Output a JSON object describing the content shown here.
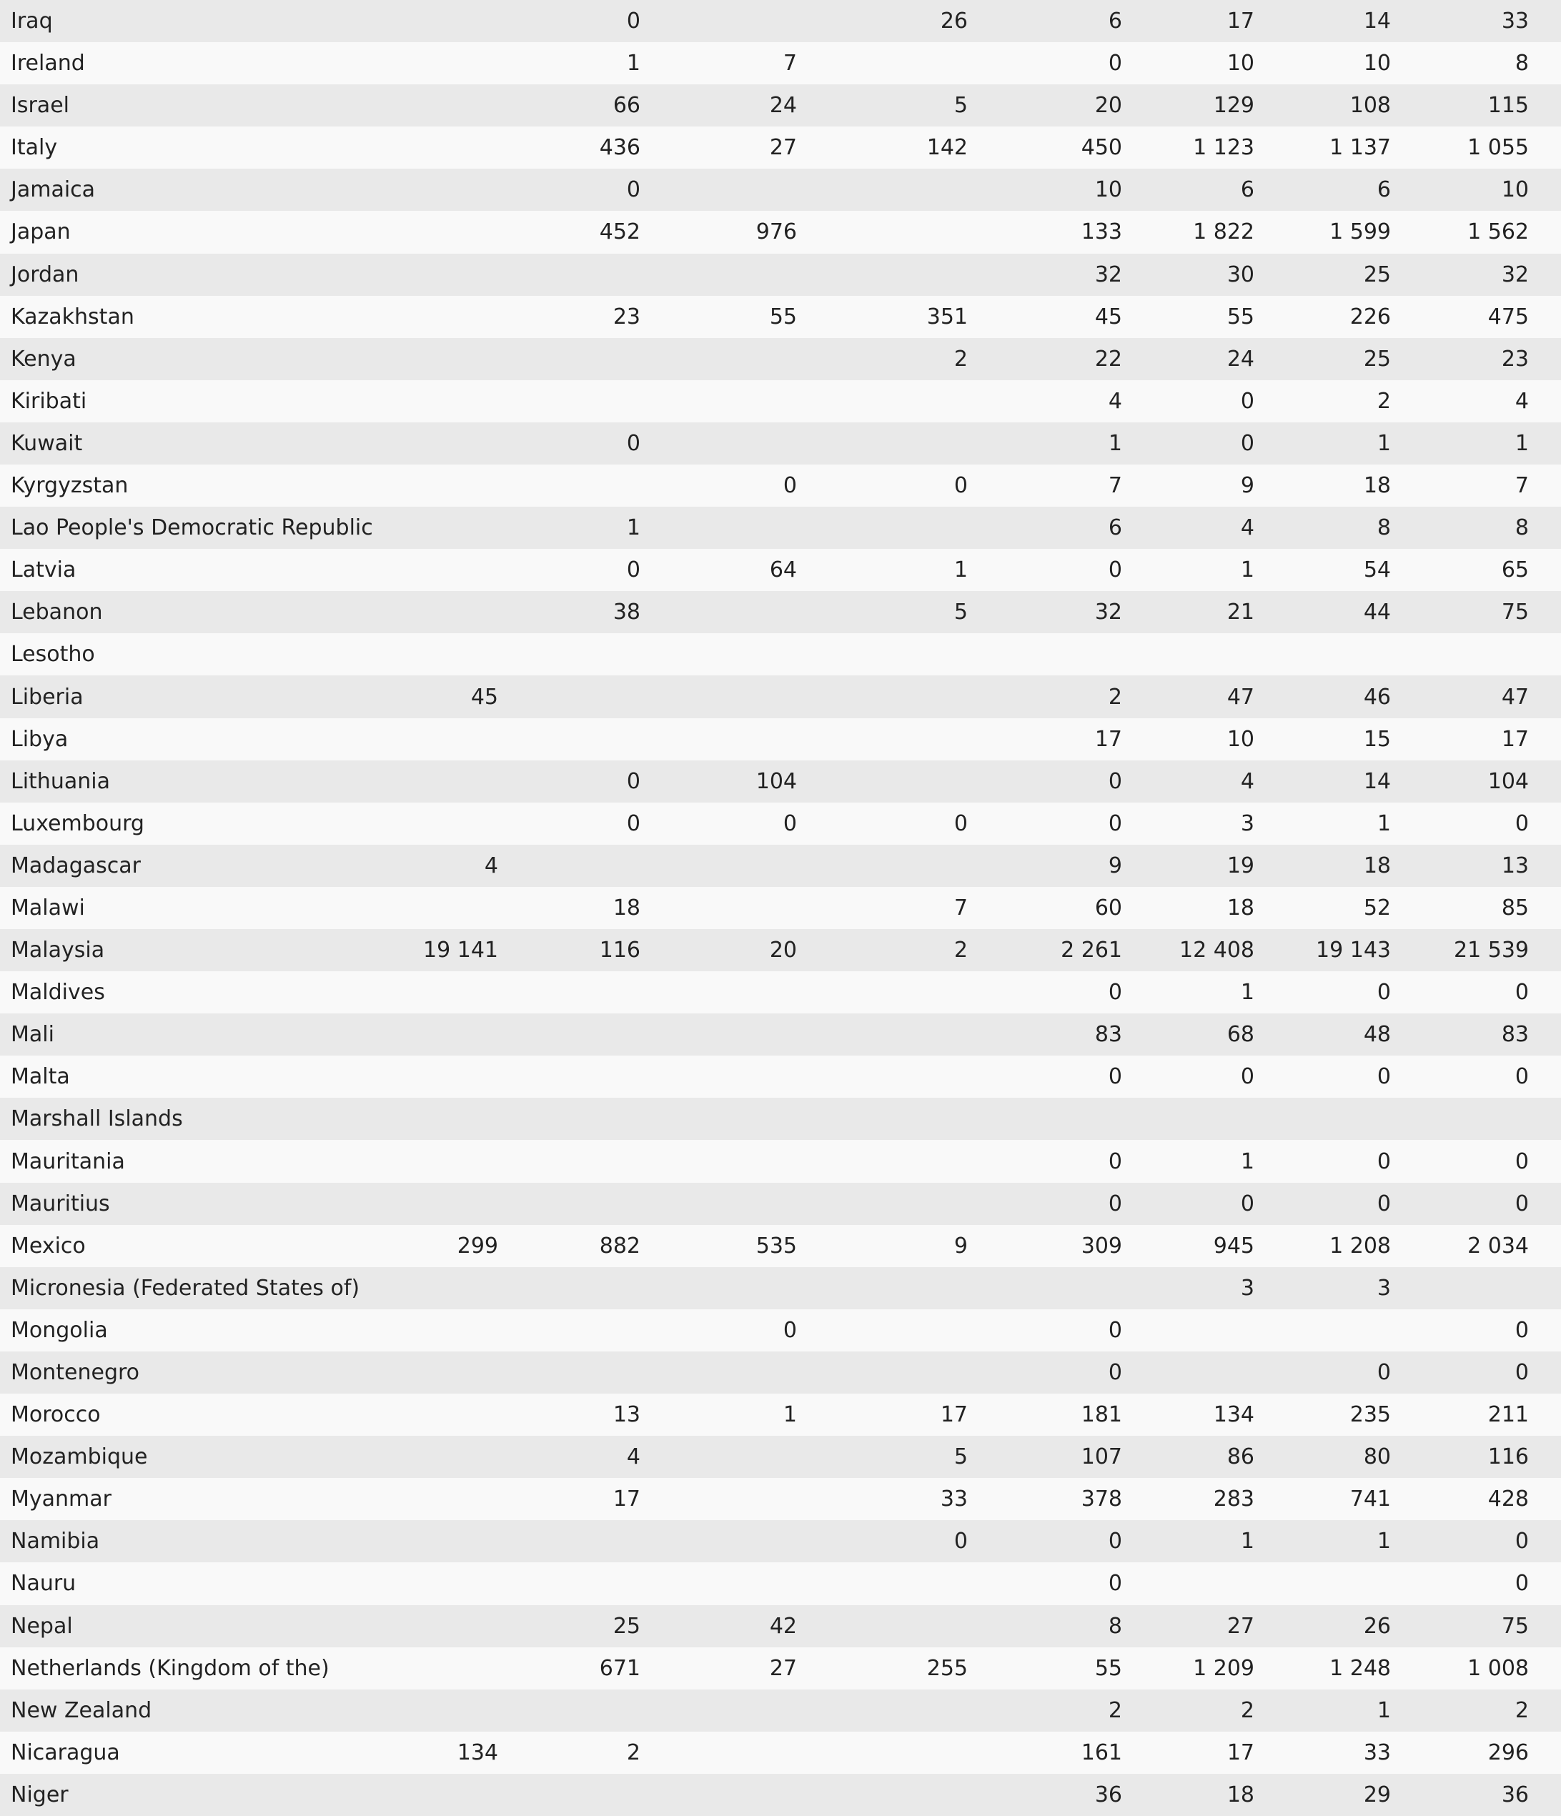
{
  "table": {
    "rows": [
      [
        "Iraq",
        null,
        0,
        null,
        26,
        6,
        17,
        14,
        33
      ],
      [
        "Ireland",
        null,
        1,
        7,
        null,
        0,
        10,
        10,
        8
      ],
      [
        "Israel",
        null,
        66,
        24,
        5,
        20,
        129,
        108,
        115
      ],
      [
        "Italy",
        null,
        436,
        27,
        142,
        450,
        "1 123",
        "1 137",
        "1 055"
      ],
      [
        "Jamaica",
        null,
        0,
        null,
        null,
        10,
        6,
        6,
        10
      ],
      [
        "Japan",
        null,
        452,
        976,
        null,
        133,
        "1 822",
        "1 599",
        "1 562"
      ],
      [
        "Jordan",
        null,
        null,
        null,
        null,
        32,
        30,
        25,
        32
      ],
      [
        "Kazakhstan",
        null,
        23,
        55,
        351,
        45,
        55,
        226,
        475
      ],
      [
        "Kenya",
        null,
        null,
        null,
        2,
        22,
        24,
        25,
        23
      ],
      [
        "Kiribati",
        null,
        null,
        null,
        null,
        4,
        0,
        2,
        4
      ],
      [
        "Kuwait",
        null,
        0,
        null,
        null,
        1,
        0,
        1,
        1
      ],
      [
        "Kyrgyzstan",
        null,
        null,
        0,
        0,
        7,
        9,
        18,
        7
      ],
      [
        "Lao People's Democratic Republic",
        null,
        1,
        null,
        null,
        6,
        4,
        8,
        8
      ],
      [
        "Latvia",
        null,
        0,
        64,
        1,
        0,
        1,
        54,
        65
      ],
      [
        "Lebanon",
        null,
        38,
        null,
        5,
        32,
        21,
        44,
        75
      ],
      [
        "Lesotho",
        null,
        null,
        null,
        null,
        null,
        null,
        null,
        null
      ],
      [
        "Liberia",
        45,
        null,
        null,
        null,
        2,
        47,
        46,
        47
      ],
      [
        "Libya",
        null,
        null,
        null,
        null,
        17,
        10,
        15,
        17
      ],
      [
        "Lithuania",
        null,
        0,
        104,
        null,
        0,
        4,
        14,
        104
      ],
      [
        "Luxembourg",
        null,
        0,
        0,
        0,
        0,
        3,
        1,
        0
      ],
      [
        "Madagascar",
        4,
        null,
        null,
        null,
        9,
        19,
        18,
        13
      ],
      [
        "Malawi",
        null,
        18,
        null,
        7,
        60,
        18,
        52,
        85
      ],
      [
        "Malaysia",
        "19 141",
        116,
        20,
        2,
        "2 261",
        "12 408",
        "19 143",
        "21 539"
      ],
      [
        "Maldives",
        null,
        null,
        null,
        null,
        0,
        1,
        0,
        0
      ],
      [
        "Mali",
        null,
        null,
        null,
        null,
        83,
        68,
        48,
        83
      ],
      [
        "Malta",
        null,
        null,
        null,
        null,
        0,
        0,
        0,
        0
      ],
      [
        "Marshall Islands",
        null,
        null,
        null,
        null,
        null,
        null,
        null,
        null
      ],
      [
        "Mauritania",
        null,
        null,
        null,
        null,
        0,
        1,
        0,
        0
      ],
      [
        "Mauritius",
        null,
        null,
        null,
        null,
        0,
        0,
        0,
        0
      ],
      [
        "Mexico",
        299,
        882,
        535,
        9,
        309,
        945,
        "1 208",
        "2 034"
      ],
      [
        "Micronesia (Federated States of)",
        null,
        null,
        null,
        null,
        null,
        3,
        3,
        null
      ],
      [
        "Mongolia",
        null,
        null,
        0,
        null,
        0,
        null,
        null,
        0
      ],
      [
        "Montenegro",
        null,
        null,
        null,
        null,
        0,
        null,
        0,
        0
      ],
      [
        "Morocco",
        null,
        13,
        1,
        17,
        181,
        134,
        235,
        211
      ],
      [
        "Mozambique",
        null,
        4,
        null,
        5,
        107,
        86,
        80,
        116
      ],
      [
        "Myanmar",
        null,
        17,
        null,
        33,
        378,
        283,
        741,
        428
      ],
      [
        "Namibia",
        null,
        null,
        null,
        0,
        0,
        1,
        1,
        0
      ],
      [
        "Nauru",
        null,
        null,
        null,
        null,
        0,
        null,
        null,
        0
      ],
      [
        "Nepal",
        null,
        25,
        42,
        null,
        8,
        27,
        26,
        75
      ],
      [
        "Netherlands (Kingdom of the)",
        null,
        671,
        27,
        255,
        55,
        "1 209",
        "1 248",
        "1 008"
      ],
      [
        "New Zealand",
        null,
        null,
        null,
        null,
        2,
        2,
        1,
        2
      ],
      [
        "Nicaragua",
        134,
        2,
        null,
        null,
        161,
        17,
        33,
        296
      ],
      [
        "Niger",
        null,
        null,
        null,
        null,
        36,
        18,
        29,
        36
      ]
    ]
  }
}
